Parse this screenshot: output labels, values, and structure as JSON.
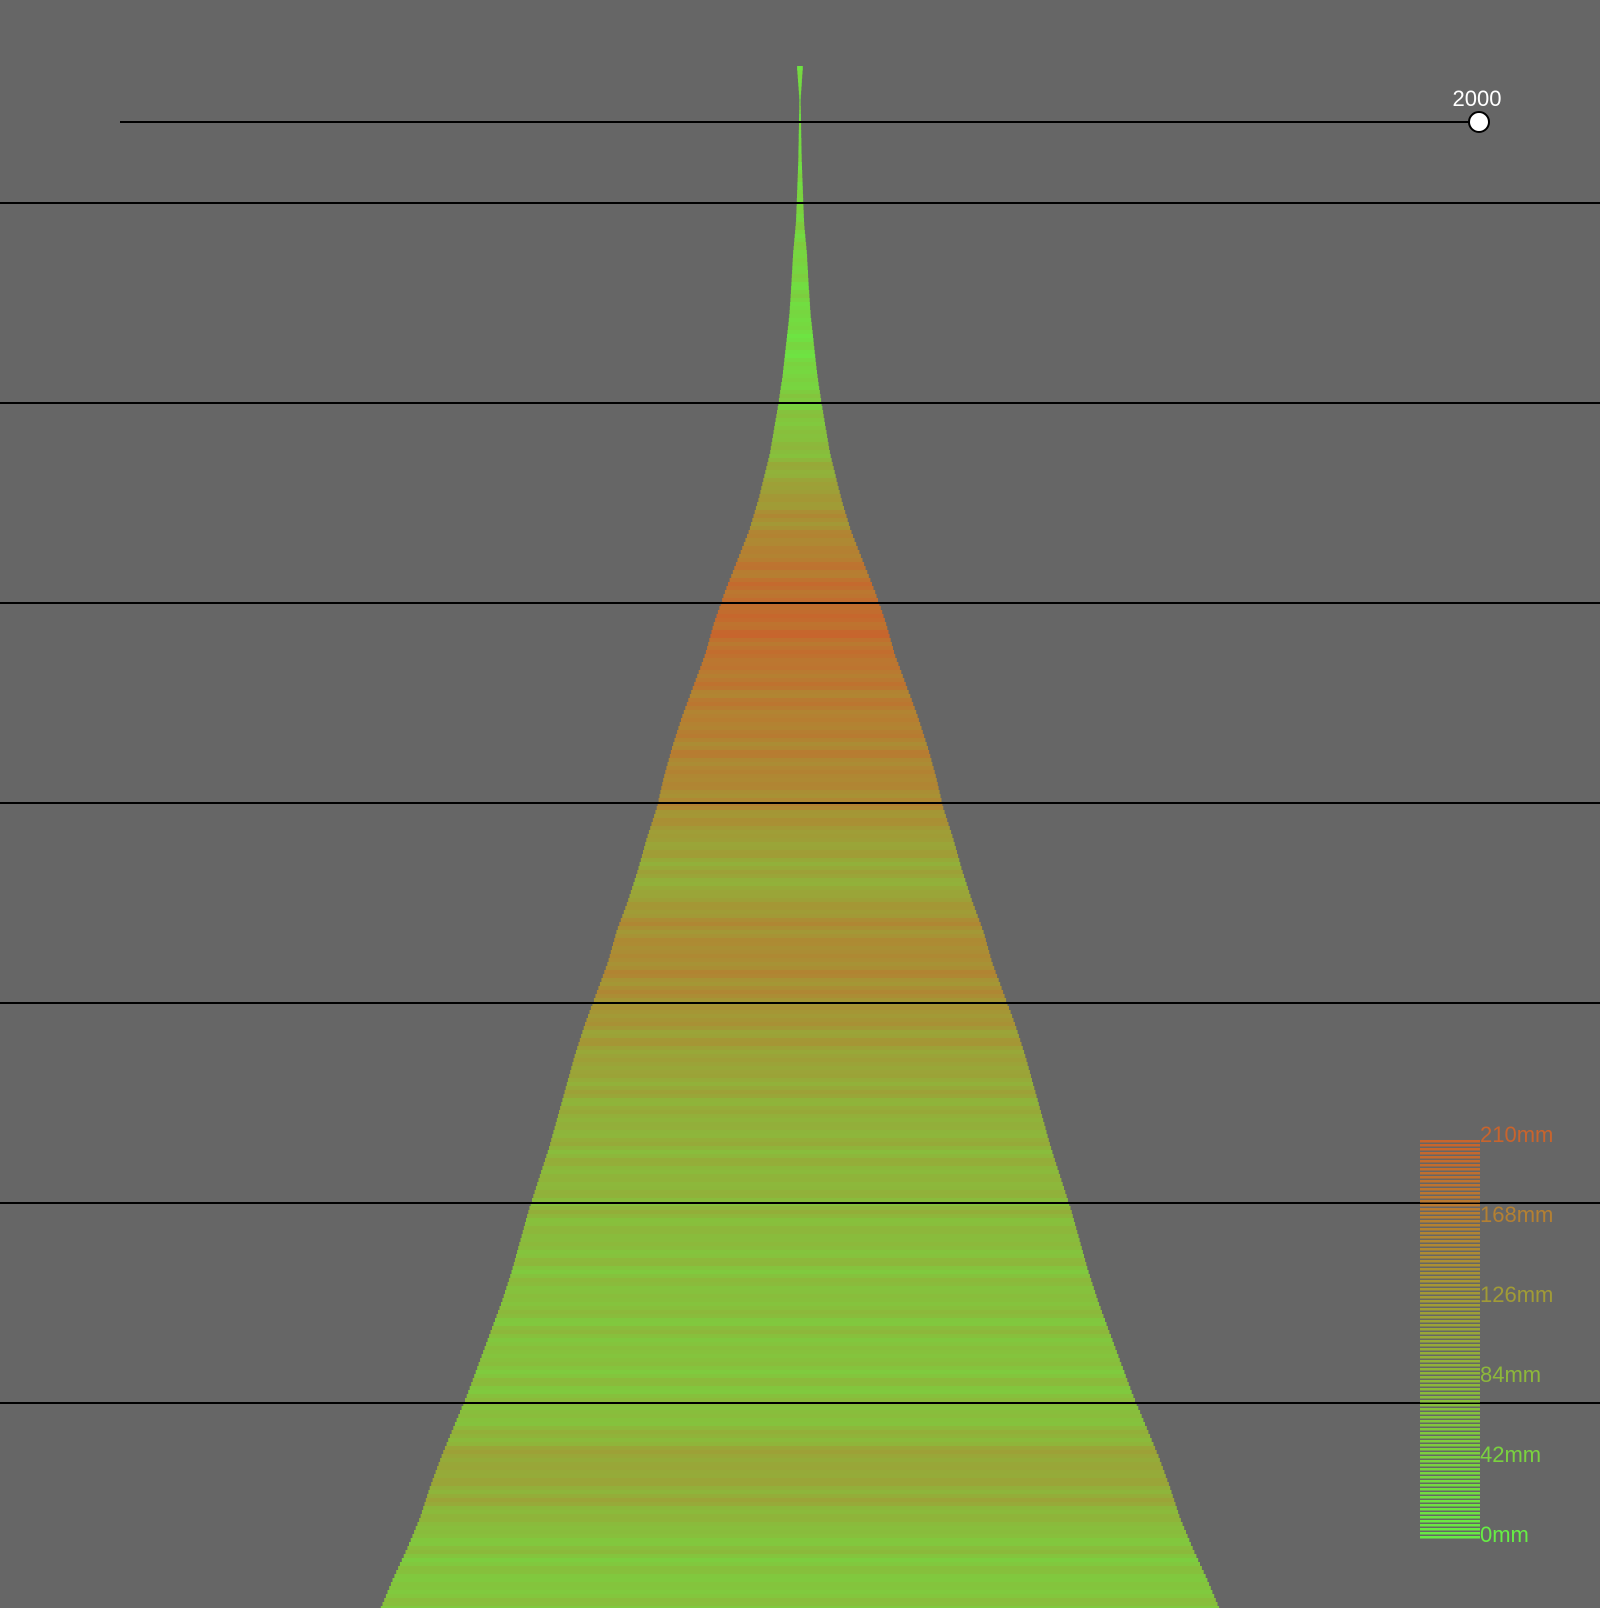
{
  "slider": {
    "year_label": "2000",
    "value": 2000
  },
  "chart_data": {
    "type": "area",
    "title": "",
    "xlabel": "",
    "ylabel": "",
    "grid": true,
    "legend": {
      "placement": "bottom-right",
      "labels": [
        "210mm",
        "168mm",
        "126mm",
        "84mm",
        "42mm",
        "0mm"
      ],
      "min_mm": 0,
      "max_mm": 210
    },
    "colors": {
      "background": "#666666",
      "low": "#66ee44",
      "high": "#c8642d",
      "gridline": "#000000",
      "slider_track": "#000000",
      "slider_handle": "#ffffff"
    },
    "profile": {
      "y": [
        0,
        0.02,
        0.04,
        0.06,
        0.08,
        0.1,
        0.12,
        0.14,
        0.16,
        0.18,
        0.2,
        0.22,
        0.25,
        0.28,
        0.3,
        0.32,
        0.34,
        0.36,
        0.38,
        0.4,
        0.42,
        0.44,
        0.46,
        0.48,
        0.5,
        0.52,
        0.54,
        0.56,
        0.58,
        0.6,
        0.62,
        0.64,
        0.66,
        0.68,
        0.7,
        0.72,
        0.74,
        0.76,
        0.78,
        0.8,
        0.82,
        0.84,
        0.86,
        0.88,
        0.9,
        0.92,
        0.94,
        0.96,
        0.98,
        1
      ],
      "width": [
        0.2,
        0.04,
        0.08,
        0.12,
        0.2,
        0.28,
        0.48,
        0.6,
        0.74,
        0.98,
        1.22,
        1.55,
        2.1,
        2.9,
        3.55,
        4.4,
        5.25,
        6,
        6.6,
        7.4,
        8.2,
        8.9,
        9.5,
        10,
        10.7,
        11.3,
        12,
        12.8,
        13.4,
        14.2,
        15,
        15.7,
        16.3,
        16.9,
        17.5,
        18.2,
        18.9,
        19.5,
        20.1,
        20.8,
        21.6,
        22.4,
        23.2,
        24.1,
        25,
        25.8,
        26.5,
        27.4,
        28.4,
        29.3
      ]
    },
    "rainfall_mm": {
      "y": [
        0.06,
        0.1,
        0.15,
        0.18,
        0.2,
        0.25,
        0.28,
        0.3,
        0.33,
        0.36,
        0.4,
        0.43,
        0.45,
        0.48,
        0.5,
        0.53,
        0.55,
        0.58,
        0.6,
        0.62,
        0.65,
        0.68,
        0.7,
        0.73,
        0.75,
        0.78,
        0.8,
        0.83,
        0.85,
        0.88,
        0.9,
        0.93,
        0.95,
        0.98,
        1
      ],
      "mm": [
        30,
        45,
        35,
        25,
        40,
        80,
        130,
        150,
        185,
        200,
        175,
        165,
        160,
        150,
        120,
        100,
        140,
        150,
        145,
        130,
        110,
        95,
        90,
        85,
        80,
        70,
        72,
        68,
        66,
        75,
        110,
        98,
        70,
        60,
        65
      ]
    }
  }
}
